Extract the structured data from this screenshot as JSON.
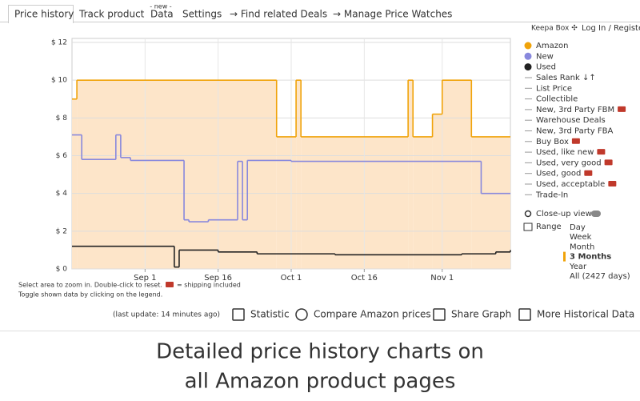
{
  "tabs": [
    {
      "label": "Price history",
      "active": true
    },
    {
      "label": "Track product"
    },
    {
      "label": "Data",
      "badge": "- new -"
    },
    {
      "label": "Settings"
    },
    {
      "label": "→ Find related Deals"
    },
    {
      "label": "→ Manage Price Watches"
    }
  ],
  "keepa_box": "Keepa Box ✣",
  "login": "Log In / Register",
  "chart_data": {
    "type": "line",
    "step": true,
    "grid": true,
    "ylim": [
      0,
      12
    ],
    "yticks": [
      {
        "value": 0,
        "label": "$ 0"
      },
      {
        "value": 2,
        "label": "$ 2"
      },
      {
        "value": 4,
        "label": "$ 4"
      },
      {
        "value": 6,
        "label": "$ 6"
      },
      {
        "value": 8,
        "label": "$ 8"
      },
      {
        "value": 10,
        "label": "$ 10"
      },
      {
        "value": 12,
        "label": "$ 12"
      }
    ],
    "xlim": [
      "Aug 17",
      "Nov 15"
    ],
    "xticks": [
      "Sep 1",
      "Sep 16",
      "Oct 1",
      "Oct 16",
      "Nov 1"
    ],
    "series": [
      {
        "name": "Amazon",
        "color": "#f0a30a",
        "fill": "#fde5c9",
        "x": [
          "Aug 17",
          "Aug 18",
          "Sep 28",
          "Oct 2",
          "Oct 3",
          "Oct 25",
          "Oct 26",
          "Oct 30",
          "Nov 1",
          "Nov 7",
          "Nov 15"
        ],
        "values": [
          9,
          10,
          7,
          10,
          7,
          10,
          7,
          8.2,
          10,
          7,
          7
        ]
      },
      {
        "name": "New",
        "color": "#8888dd",
        "x": [
          "Aug 17",
          "Aug 19",
          "Aug 26",
          "Aug 27",
          "Aug 29",
          "Sep 9",
          "Sep 10",
          "Sep 14",
          "Sep 20",
          "Sep 21",
          "Sep 22",
          "Oct 1",
          "Nov 9",
          "Nov 15"
        ],
        "values": [
          7.1,
          5.8,
          7.1,
          5.9,
          5.75,
          2.6,
          2.5,
          2.6,
          5.7,
          2.6,
          5.75,
          5.7,
          4.0,
          4.0
        ]
      },
      {
        "name": "Used",
        "color": "#222222",
        "x": [
          "Aug 17",
          "Sep 7",
          "Sep 8",
          "Sep 16",
          "Sep 24",
          "Oct 10",
          "Nov 5",
          "Nov 12",
          "Nov 15"
        ],
        "values": [
          1.2,
          0.1,
          1.0,
          0.9,
          0.8,
          0.75,
          0.8,
          0.9,
          1.0
        ]
      }
    ]
  },
  "legend_other": [
    {
      "label": "Sales Rank ↓↑"
    },
    {
      "label": "List Price"
    },
    {
      "label": "Collectible"
    },
    {
      "label": "New, 3rd Party FBM",
      "shipping_icon": true
    },
    {
      "label": "Warehouse Deals"
    },
    {
      "label": "New, 3rd Party FBA"
    },
    {
      "label": "Buy Box",
      "shipping_icon": true
    },
    {
      "label": "Used, like new",
      "shipping_icon": true
    },
    {
      "label": "Used, very good",
      "shipping_icon": true
    },
    {
      "label": "Used, good",
      "shipping_icon": true
    },
    {
      "label": "Used, acceptable",
      "shipping_icon": true
    },
    {
      "label": "Trade-In"
    }
  ],
  "closeup": "Close-up view",
  "range_label": "Range",
  "range_options": [
    {
      "label": "Day"
    },
    {
      "label": "Week"
    },
    {
      "label": "Month"
    },
    {
      "label": "3 Months",
      "selected": true
    },
    {
      "label": "Year"
    },
    {
      "label": "All (2427 days)"
    }
  ],
  "hints": [
    "Select area to zoom in. Double-click to reset.",
    "Toggle shown data by clicking on the legend."
  ],
  "shipping_note": "= shipping included",
  "footer": {
    "last_update": "(last update: 14 minutes ago)",
    "buttons": [
      "Statistic",
      "Compare Amazon prices",
      "Share Graph",
      "More Historical Data"
    ]
  },
  "caption": [
    "Detailed price history charts on",
    "all Amazon product pages"
  ]
}
